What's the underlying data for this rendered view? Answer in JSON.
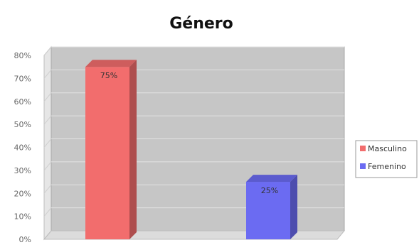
{
  "chart_data": {
    "type": "bar",
    "title": "Género",
    "xlabel": "",
    "ylabel": "",
    "categories": [
      "Masculino",
      "Femenino"
    ],
    "values": [
      75,
      25
    ],
    "data_labels": [
      "75%",
      "25%"
    ],
    "colors": [
      "#f26d6d",
      "#6b6bf2"
    ],
    "ylim": [
      0,
      80
    ],
    "y_ticks": [
      "0%",
      "10%",
      "20%",
      "30%",
      "40%",
      "50%",
      "60%",
      "70%",
      "80%"
    ],
    "grid": true,
    "legend": {
      "position": "right",
      "entries": [
        "Masculino",
        "Femenino"
      ]
    }
  }
}
